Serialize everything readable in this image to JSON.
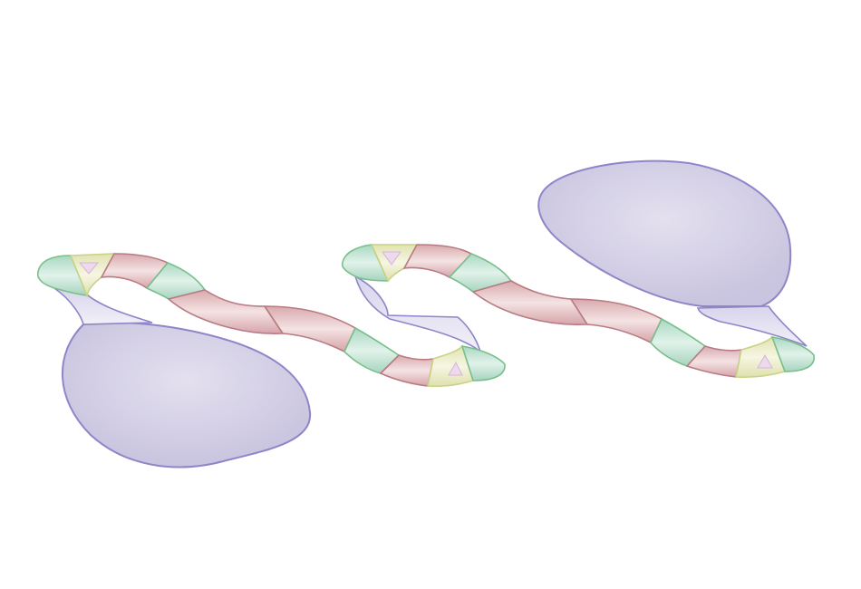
{
  "diagram": {
    "kind": "ribbon-illustration",
    "labels": [],
    "colors": {
      "background": "#ffffff",
      "blob_fill": "#cfcbe2",
      "blob_stroke": "#8e86c8",
      "ribbon_red_fill": "#e7c6c7",
      "ribbon_red_stroke": "#b87b84",
      "ribbon_green_fill": "#bfe0d2",
      "ribbon_green_stroke": "#79bf8b",
      "ribbon_yellow_fill": "#ecebc8",
      "ribbon_yellow_stroke": "#c9d285",
      "ribbon_lavender_fill": "#e2dff0",
      "ribbon_lavender_stroke": "#8e86c8"
    },
    "segments": [
      {
        "name": "ribbon-body-left",
        "color": "ribbon_red"
      },
      {
        "name": "ribbon-loop-left",
        "color": "ribbon_green"
      },
      {
        "name": "ribbon-body-middle",
        "color": "ribbon_red"
      },
      {
        "name": "ribbon-loop-middle",
        "color": "ribbon_green"
      },
      {
        "name": "ribbon-body-right",
        "color": "ribbon_red"
      },
      {
        "name": "ribbon-loop-right",
        "color": "ribbon_green"
      }
    ]
  }
}
